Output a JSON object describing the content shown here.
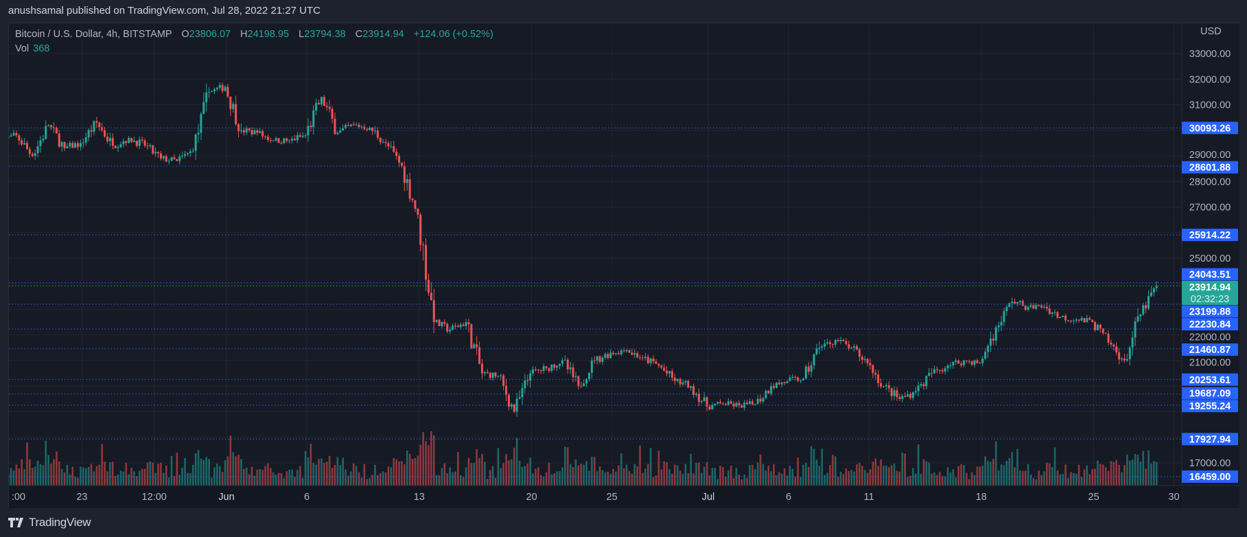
{
  "header": {
    "published": "anushsamal published on TradingView.com, Jul 28, 2022 21:27 UTC"
  },
  "legend": {
    "symbol": "Bitcoin / U.S. Dollar, 4h, BITSTAMP",
    "o_label": "O",
    "o": "23806.07",
    "h_label": "H",
    "h": "24198.95",
    "l_label": "L",
    "l": "23794.38",
    "c_label": "C",
    "c": "23914.94",
    "change": "+124.06 (+0.52%)",
    "vol_label": "Vol",
    "vol": "368"
  },
  "footer": {
    "brand": "TradingView"
  },
  "colors": {
    "up": "#26a69a",
    "down": "#ef5350",
    "level": "#2962ff",
    "background": "#161a25",
    "grid": "#222632"
  },
  "chart_data": {
    "type": "candlestick",
    "interval": "4h",
    "currency": "USD",
    "ylim": [
      16000,
      33500
    ],
    "y_ticks": [
      "33000.00",
      "32000.00",
      "31000.00",
      "29000.00",
      "28000.00",
      "27000.00",
      "25000.00",
      "22000.00",
      "21000.00",
      "17000.00"
    ],
    "x_ticks": [
      {
        "label": ":00",
        "date": "2022-05-18"
      },
      {
        "label": "23",
        "date": "2022-05-23"
      },
      {
        "label": "12:00",
        "date": "2022-05-27T12:00"
      },
      {
        "label": "Jun",
        "date": "2022-06-01"
      },
      {
        "label": "6",
        "date": "2022-06-06"
      },
      {
        "label": "13",
        "date": "2022-06-13"
      },
      {
        "label": "20",
        "date": "2022-06-20"
      },
      {
        "label": "25",
        "date": "2022-06-25"
      },
      {
        "label": "Jul",
        "date": "2022-07-01"
      },
      {
        "label": "6",
        "date": "2022-07-06"
      },
      {
        "label": "11",
        "date": "2022-07-11"
      },
      {
        "label": "18",
        "date": "2022-07-18"
      },
      {
        "label": "25",
        "date": "2022-07-25"
      },
      {
        "label": "30",
        "date": "2022-07-30"
      }
    ],
    "daily_close": [
      [
        "2022-05-18",
        29800
      ],
      [
        "2022-05-19",
        29000
      ],
      [
        "2022-05-20",
        30200
      ],
      [
        "2022-05-21",
        29300
      ],
      [
        "2022-05-22",
        29500
      ],
      [
        "2022-05-23",
        30300
      ],
      [
        "2022-05-24",
        29400
      ],
      [
        "2022-05-25",
        29700
      ],
      [
        "2022-05-26",
        29400
      ],
      [
        "2022-05-27",
        28900
      ],
      [
        "2022-05-28",
        28800
      ],
      [
        "2022-05-29",
        29200
      ],
      [
        "2022-05-30",
        31500
      ],
      [
        "2022-05-31",
        31700
      ],
      [
        "2022-06-01",
        30000
      ],
      [
        "2022-06-02",
        29900
      ],
      [
        "2022-06-03",
        29600
      ],
      [
        "2022-06-04",
        29600
      ],
      [
        "2022-06-05",
        29800
      ],
      [
        "2022-06-06",
        31300
      ],
      [
        "2022-06-07",
        29900
      ],
      [
        "2022-06-08",
        30200
      ],
      [
        "2022-06-09",
        30100
      ],
      [
        "2022-06-10",
        29500
      ],
      [
        "2022-06-11",
        28600
      ],
      [
        "2022-06-12",
        26700
      ],
      [
        "2022-06-13",
        22500
      ],
      [
        "2022-06-14",
        22200
      ],
      [
        "2022-06-15",
        22500
      ],
      [
        "2022-06-16",
        20500
      ],
      [
        "2022-06-17",
        20400
      ],
      [
        "2022-06-18",
        19000
      ],
      [
        "2022-06-19",
        20500
      ],
      [
        "2022-06-20",
        20700
      ],
      [
        "2022-06-21",
        21000
      ],
      [
        "2022-06-22",
        20000
      ],
      [
        "2022-06-23",
        21000
      ],
      [
        "2022-06-24",
        21300
      ],
      [
        "2022-06-25",
        21400
      ],
      [
        "2022-06-26",
        21100
      ],
      [
        "2022-06-27",
        20800
      ],
      [
        "2022-06-28",
        20200
      ],
      [
        "2022-06-29",
        20000
      ],
      [
        "2022-06-30",
        19200
      ],
      [
        "2022-07-01",
        19300
      ],
      [
        "2022-07-02",
        19250
      ],
      [
        "2022-07-03",
        19300
      ],
      [
        "2022-07-04",
        20000
      ],
      [
        "2022-07-05",
        20200
      ],
      [
        "2022-07-06",
        20300
      ],
      [
        "2022-07-07",
        21500
      ],
      [
        "2022-07-08",
        21800
      ],
      [
        "2022-07-09",
        21500
      ],
      [
        "2022-07-10",
        20900
      ],
      [
        "2022-07-11",
        20000
      ],
      [
        "2022-07-12",
        19500
      ],
      [
        "2022-07-13",
        19800
      ],
      [
        "2022-07-14",
        20500
      ],
      [
        "2022-07-15",
        20800
      ],
      [
        "2022-07-16",
        21000
      ],
      [
        "2022-07-17",
        20900
      ],
      [
        "2022-07-18",
        22300
      ],
      [
        "2022-07-19",
        23300
      ],
      [
        "2022-07-20",
        23100
      ],
      [
        "2022-07-21",
        23100
      ],
      [
        "2022-07-22",
        22700
      ],
      [
        "2022-07-23",
        22600
      ],
      [
        "2022-07-24",
        22500
      ],
      [
        "2022-07-25",
        21700
      ],
      [
        "2022-07-26",
        21000
      ],
      [
        "2022-07-27",
        22800
      ],
      [
        "2022-07-28",
        23914.94
      ]
    ],
    "levels": [
      "30093.26",
      "28601.88",
      "25914.22",
      "24043.51",
      "23199.88",
      "22230.84",
      "21460.87",
      "20253.61",
      "19687.09",
      "19255.24",
      "17927.94",
      "16459.00"
    ],
    "last_price": "23914.94",
    "countdown": "02:32:23"
  }
}
